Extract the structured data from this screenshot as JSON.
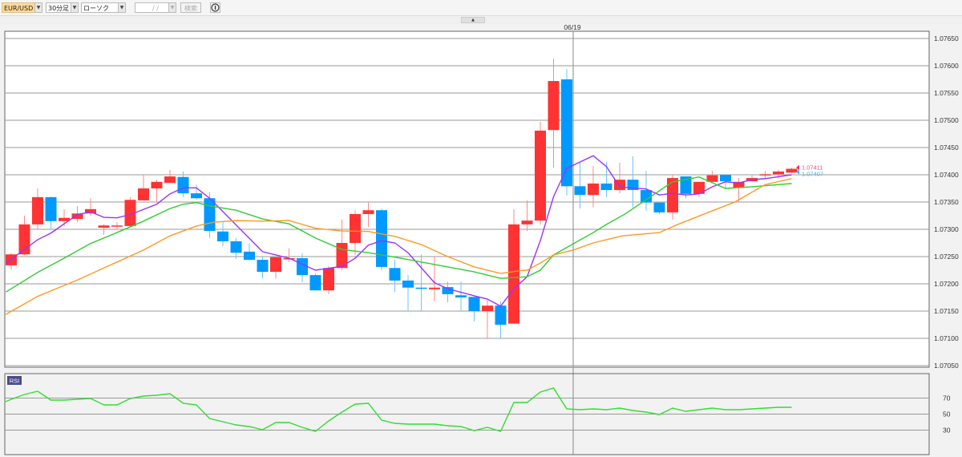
{
  "toolbar": {
    "symbol": "EUR/USD",
    "timeframe": "30分足",
    "chart_type": "ローソク(BID)",
    "date_input": "/ /",
    "search_label": "検索",
    "info_icon": "info-circle-icon",
    "dropdown_icon": "▼",
    "collapse_icon": "▲"
  },
  "colors": {
    "up": "#ff3333",
    "down": "#0099ff",
    "ma_short": "#9933ff",
    "ma_mid": "#33cc33",
    "ma_long": "#ff9922",
    "rsi": "#33dd33"
  },
  "chart_data": [
    {
      "type": "candlestick",
      "symbol": "EUR/USD",
      "date_marker": "06/19",
      "date_marker_candle": 42,
      "ylim": [
        1.0705,
        1.0765
      ],
      "yticks": [
        "1.07650",
        "1.07600",
        "1.07550",
        "1.07500",
        "1.07450",
        "1.07400",
        "1.07350",
        "1.07300",
        "1.07250",
        "1.07200",
        "1.07150",
        "1.07100",
        "1.07050"
      ],
      "grid": true,
      "last_prices": {
        "ask_label": "1.07411",
        "bid_label": "1.07407"
      },
      "ohlc": [
        [
          1.07234,
          1.07256,
          1.07226,
          1.07254
        ],
        [
          1.07254,
          1.07325,
          1.07253,
          1.07309
        ],
        [
          1.07309,
          1.07375,
          1.073,
          1.07359
        ],
        [
          1.07359,
          1.0736,
          1.073,
          1.07315
        ],
        [
          1.07315,
          1.07337,
          1.07306,
          1.07321
        ],
        [
          1.07319,
          1.07343,
          1.07313,
          1.07329
        ],
        [
          1.07329,
          1.07357,
          1.07325,
          1.07337
        ],
        [
          1.07303,
          1.07309,
          1.0729,
          1.07307
        ],
        [
          1.07306,
          1.07313,
          1.073,
          1.07307
        ],
        [
          1.07306,
          1.07359,
          1.07304,
          1.07354
        ],
        [
          1.07353,
          1.074,
          1.07353,
          1.07375
        ],
        [
          1.07375,
          1.07391,
          1.07349,
          1.07387
        ],
        [
          1.07385,
          1.07409,
          1.07385,
          1.07397
        ],
        [
          1.07396,
          1.07406,
          1.07359,
          1.07366
        ],
        [
          1.07366,
          1.07382,
          1.07354,
          1.07357
        ],
        [
          1.07357,
          1.07368,
          1.07284,
          1.07297
        ],
        [
          1.07296,
          1.07313,
          1.07269,
          1.07278
        ],
        [
          1.07278,
          1.07284,
          1.07246,
          1.07257
        ],
        [
          1.07259,
          1.07274,
          1.07243,
          1.07244
        ],
        [
          1.07244,
          1.0725,
          1.0721,
          1.07222
        ],
        [
          1.07222,
          1.07249,
          1.0721,
          1.07249
        ],
        [
          1.07247,
          1.07265,
          1.0724,
          1.07247
        ],
        [
          1.07247,
          1.07256,
          1.07203,
          1.07216
        ],
        [
          1.07216,
          1.07219,
          1.07188,
          1.07188
        ],
        [
          1.07188,
          1.07232,
          1.07181,
          1.07229
        ],
        [
          1.07229,
          1.07318,
          1.07225,
          1.07275
        ],
        [
          1.07275,
          1.07335,
          1.07253,
          1.07328
        ],
        [
          1.07328,
          1.07349,
          1.07304,
          1.07335
        ],
        [
          1.07335,
          1.07338,
          1.07225,
          1.07231
        ],
        [
          1.07229,
          1.07244,
          1.07185,
          1.07206
        ],
        [
          1.07206,
          1.07216,
          1.07149,
          1.07193
        ],
        [
          1.07193,
          1.07254,
          1.07149,
          1.07191
        ],
        [
          1.0719,
          1.07251,
          1.07168,
          1.07193
        ],
        [
          1.07194,
          1.07204,
          1.07166,
          1.07181
        ],
        [
          1.07179,
          1.07204,
          1.07151,
          1.07175
        ],
        [
          1.07176,
          1.07176,
          1.07131,
          1.0715
        ],
        [
          1.0715,
          1.07171,
          1.07099,
          1.0716
        ],
        [
          1.0716,
          1.07168,
          1.07101,
          1.07125
        ],
        [
          1.07127,
          1.07337,
          1.07127,
          1.07309
        ],
        [
          1.07309,
          1.07353,
          1.07297,
          1.07316
        ],
        [
          1.07316,
          1.07497,
          1.07309,
          1.07481
        ],
        [
          1.07482,
          1.07613,
          1.07413,
          1.07572
        ],
        [
          1.07575,
          1.07594,
          1.07362,
          1.07379
        ],
        [
          1.07379,
          1.07422,
          1.07338,
          1.07363
        ],
        [
          1.07363,
          1.07416,
          1.0734,
          1.07384
        ],
        [
          1.07384,
          1.07424,
          1.07359,
          1.07372
        ],
        [
          1.07372,
          1.07422,
          1.07366,
          1.07391
        ],
        [
          1.07391,
          1.07434,
          1.0734,
          1.07372
        ],
        [
          1.07372,
          1.07407,
          1.07334,
          1.07349
        ],
        [
          1.07349,
          1.07349,
          1.07328,
          1.07331
        ],
        [
          1.07331,
          1.07401,
          1.07318,
          1.07394
        ],
        [
          1.07397,
          1.07397,
          1.07357,
          1.07365
        ],
        [
          1.07365,
          1.07387,
          1.07359,
          1.07387
        ],
        [
          1.07387,
          1.07407,
          1.07387,
          1.07399
        ],
        [
          1.074,
          1.074,
          1.07376,
          1.07388
        ],
        [
          1.07376,
          1.07394,
          1.0735,
          1.07387
        ],
        [
          1.07388,
          1.07399,
          1.07388,
          1.07394
        ],
        [
          1.07399,
          1.07407,
          1.07394,
          1.07401
        ],
        [
          1.07401,
          1.07409,
          1.07393,
          1.07406
        ],
        [
          1.07404,
          1.07413,
          1.07403,
          1.07411
        ]
      ],
      "moving_averages": [
        {
          "color_key": "ma_short",
          "points": [
            [
              -0.4,
              1.07238
            ],
            [
              2,
              1.07281
            ],
            [
              3,
              1.07293
            ],
            [
              5,
              1.07327
            ],
            [
              6,
              1.07332
            ],
            [
              7,
              1.07322
            ],
            [
              8,
              1.07321
            ],
            [
              9,
              1.07327
            ],
            [
              11,
              1.07346
            ],
            [
              12,
              1.07365
            ],
            [
              13,
              1.07376
            ],
            [
              14,
              1.07376
            ],
            [
              15,
              1.07357
            ],
            [
              19,
              1.07259
            ],
            [
              21,
              1.07247
            ],
            [
              23,
              1.07225
            ],
            [
              25,
              1.07232
            ],
            [
              26,
              1.07247
            ],
            [
              27,
              1.07271
            ],
            [
              28,
              1.07279
            ],
            [
              29,
              1.07275
            ],
            [
              30,
              1.07257
            ],
            [
              32,
              1.07202
            ],
            [
              33,
              1.07191
            ],
            [
              35,
              1.07178
            ],
            [
              36,
              1.07172
            ],
            [
              37,
              1.07159
            ],
            [
              38,
              1.07191
            ],
            [
              39,
              1.07213
            ],
            [
              40,
              1.07279
            ],
            [
              41,
              1.0736
            ],
            [
              42,
              1.07412
            ],
            [
              44,
              1.07435
            ],
            [
              45,
              1.07415
            ],
            [
              46,
              1.07378
            ],
            [
              48,
              1.07374
            ],
            [
              49,
              1.07363
            ],
            [
              50,
              1.07366
            ],
            [
              51,
              1.07363
            ],
            [
              52,
              1.07365
            ],
            [
              53,
              1.07378
            ],
            [
              54,
              1.07387
            ],
            [
              55,
              1.07385
            ],
            [
              56,
              1.07391
            ],
            [
              57,
              1.07393
            ],
            [
              59,
              1.074
            ]
          ]
        },
        {
          "color_key": "ma_mid",
          "points": [
            [
              -0.4,
              1.07185
            ],
            [
              2,
              1.07221
            ],
            [
              4,
              1.07247
            ],
            [
              6,
              1.07274
            ],
            [
              8,
              1.07294
            ],
            [
              10,
              1.07315
            ],
            [
              12,
              1.07338
            ],
            [
              13,
              1.07346
            ],
            [
              14,
              1.07349
            ],
            [
              15,
              1.07343
            ],
            [
              17,
              1.07335
            ],
            [
              19,
              1.07319
            ],
            [
              21,
              1.0731
            ],
            [
              23,
              1.07284
            ],
            [
              25,
              1.07263
            ],
            [
              27,
              1.07257
            ],
            [
              29,
              1.07249
            ],
            [
              31,
              1.0724
            ],
            [
              33,
              1.07231
            ],
            [
              35,
              1.07222
            ],
            [
              37,
              1.0721
            ],
            [
              39,
              1.07213
            ],
            [
              40,
              1.07225
            ],
            [
              41,
              1.07253
            ],
            [
              44,
              1.07294
            ],
            [
              45,
              1.07309
            ],
            [
              46.4,
              1.07328
            ],
            [
              50,
              1.07387
            ],
            [
              52,
              1.07396
            ],
            [
              54,
              1.07375
            ],
            [
              56,
              1.07378
            ],
            [
              59,
              1.07384
            ]
          ]
        },
        {
          "color_key": "ma_long",
          "points": [
            [
              -0.4,
              1.07144
            ],
            [
              2,
              1.07177
            ],
            [
              5,
              1.07207
            ],
            [
              8,
              1.0724
            ],
            [
              10,
              1.07262
            ],
            [
              12,
              1.07288
            ],
            [
              14,
              1.07306
            ],
            [
              15.3,
              1.07313
            ],
            [
              17,
              1.07316
            ],
            [
              19,
              1.07315
            ],
            [
              21,
              1.07316
            ],
            [
              23,
              1.07302
            ],
            [
              25,
              1.07297
            ],
            [
              27,
              1.07296
            ],
            [
              29,
              1.07287
            ],
            [
              31,
              1.07272
            ],
            [
              33,
              1.0725
            ],
            [
              35,
              1.07231
            ],
            [
              37,
              1.07219
            ],
            [
              38.4,
              1.07224
            ],
            [
              39,
              1.07225
            ],
            [
              40,
              1.07238
            ],
            [
              41,
              1.07253
            ],
            [
              42.5,
              1.07262
            ],
            [
              44,
              1.07275
            ],
            [
              46.2,
              1.07288
            ],
            [
              49,
              1.07294
            ],
            [
              50.5,
              1.0731
            ],
            [
              54.7,
              1.0735
            ],
            [
              57,
              1.07382
            ],
            [
              59,
              1.07393
            ]
          ]
        }
      ]
    },
    {
      "type": "line",
      "label": "RSI",
      "ylim": [
        0,
        100
      ],
      "reference_levels": [
        "70",
        "50",
        "30"
      ],
      "values": [
        69,
        75,
        79,
        68,
        68,
        69,
        70,
        62,
        62,
        70,
        73,
        74,
        76,
        64,
        62,
        45,
        41,
        37,
        35,
        31,
        40,
        40,
        34,
        29,
        42,
        53,
        63,
        64,
        43,
        39,
        38,
        38,
        38,
        36,
        35,
        30,
        34,
        29,
        65,
        65,
        78,
        83,
        57,
        56,
        57,
        56,
        58,
        55,
        53,
        50,
        58,
        54,
        56,
        58,
        56,
        56,
        57,
        58,
        59,
        59
      ]
    }
  ]
}
